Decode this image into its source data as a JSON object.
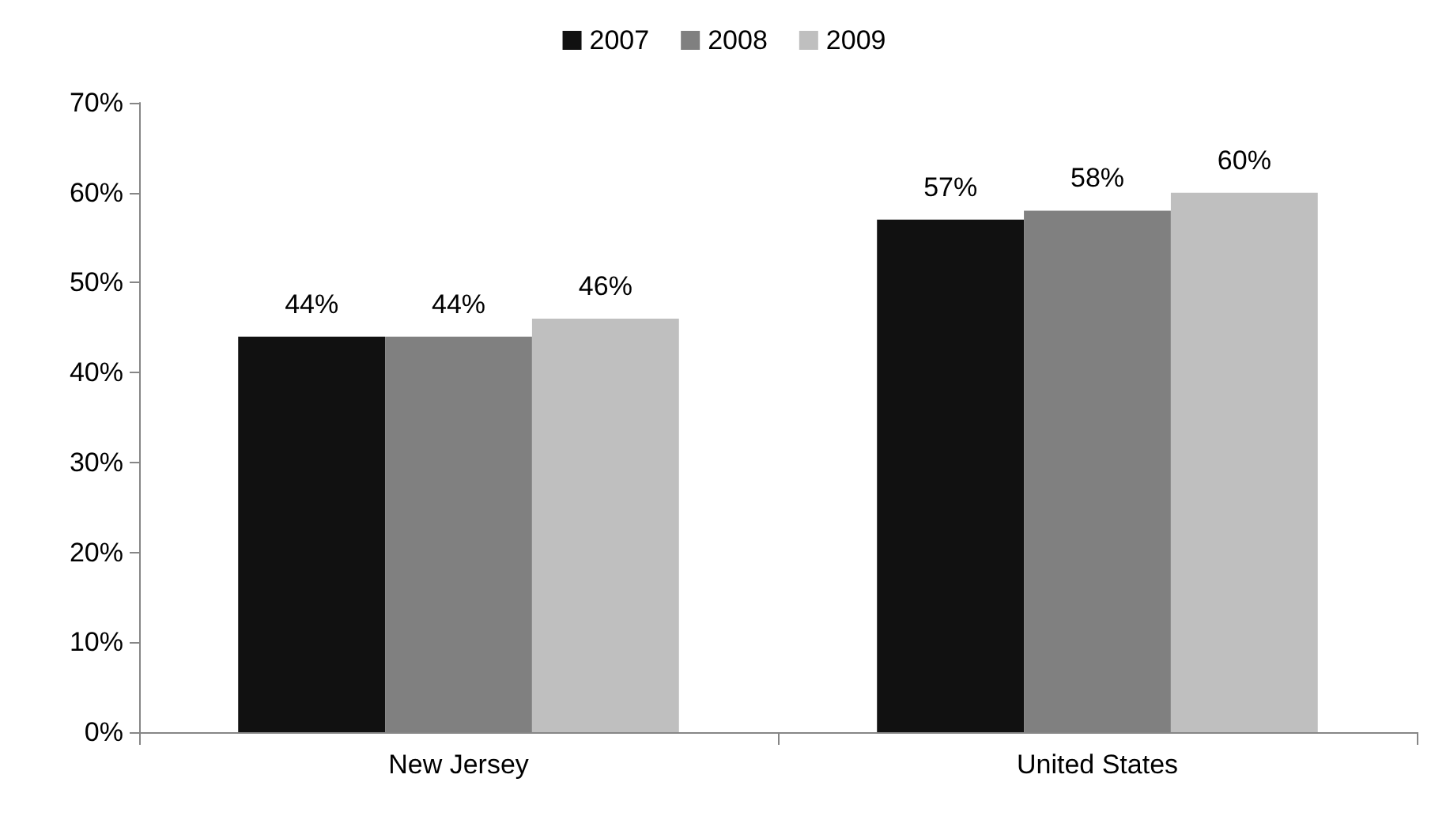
{
  "chart_data": {
    "type": "bar",
    "categories": [
      "New Jersey",
      "United States"
    ],
    "series": [
      {
        "name": "2007",
        "color": "#111111",
        "values": [
          44,
          57
        ],
        "value_labels": [
          "44%",
          "57%"
        ]
      },
      {
        "name": "2008",
        "color": "#808080",
        "values": [
          44,
          58
        ],
        "value_labels": [
          "44%",
          "58%"
        ]
      },
      {
        "name": "2009",
        "color": "#bfbfbf",
        "values": [
          46,
          60
        ],
        "value_labels": [
          "46%",
          "60%"
        ]
      }
    ],
    "ylim": [
      0,
      70
    ],
    "yticks": [
      {
        "value": 0,
        "label": "0%"
      },
      {
        "value": 10,
        "label": "10%"
      },
      {
        "value": 20,
        "label": "20%"
      },
      {
        "value": 30,
        "label": "30%"
      },
      {
        "value": 40,
        "label": "40%"
      },
      {
        "value": 50,
        "label": "50%"
      },
      {
        "value": 60,
        "label": "60%"
      },
      {
        "value": 70,
        "label": "70%"
      }
    ],
    "grid": false,
    "legend": "top"
  }
}
